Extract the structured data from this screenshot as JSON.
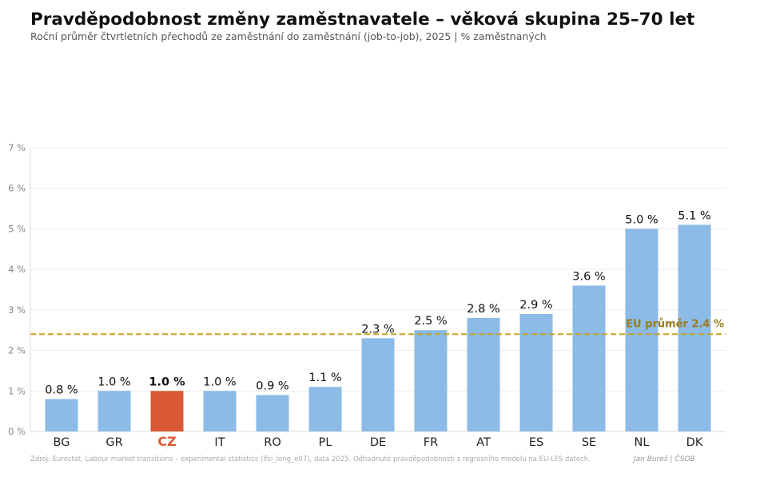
{
  "header": {
    "title": "Pravděpodobnost změny zaměstnavatele – věková skupina 25–70 let",
    "subtitle": "Roční průměr čtvrtletních přechodů ze zaměstnání do zaměstnání (job-to-job), 2025  |  % zaměstnaných"
  },
  "footer": {
    "source": "Zdroj: Eurostat, Labour market transitions – experimental statistics (lfsi_long_e07), data 2025. Odhadnuté pravděpodobnosti z regresního modelu na EU-LFS datech.",
    "author": "Jan Bureš | ČSOB"
  },
  "colors": {
    "bar": "#8bbbe6",
    "highlight": "#d95a32",
    "reference": "#c9a227",
    "reference_text": "#9c7a1e",
    "grid": "#ececec",
    "tick": "#888888"
  },
  "chart_data": {
    "type": "bar",
    "categories": [
      "BG",
      "GR",
      "CZ",
      "IT",
      "RO",
      "PL",
      "DE",
      "FR",
      "AT",
      "ES",
      "SE",
      "NL",
      "DK"
    ],
    "values": [
      0.8,
      1.0,
      1.0,
      1.0,
      0.9,
      1.1,
      2.3,
      2.5,
      2.8,
      2.9,
      3.6,
      5.0,
      5.1
    ],
    "value_labels": [
      "0.8 %",
      "1.0 %",
      "1.0 %",
      "1.0 %",
      "0.9 %",
      "1.1 %",
      "2.3 %",
      "2.5 %",
      "2.8 %",
      "2.9 %",
      "3.6 %",
      "5.0 %",
      "5.1 %"
    ],
    "highlight": "CZ",
    "ylim": [
      0,
      7
    ],
    "yticks": [
      0,
      1,
      2,
      3,
      4,
      5,
      6,
      7
    ],
    "ytick_labels": [
      "0 %",
      "1 %",
      "2 %",
      "3 %",
      "4 %",
      "5 %",
      "6 %",
      "7 %"
    ],
    "grid": true,
    "reference_line": {
      "value": 2.4,
      "label": "EU průměr 2.4 %",
      "style": "dashed"
    },
    "title": "Pravděpodobnost změny zaměstnavatele – věková skupina 25–70 let",
    "xlabel": "",
    "ylabel": ""
  }
}
